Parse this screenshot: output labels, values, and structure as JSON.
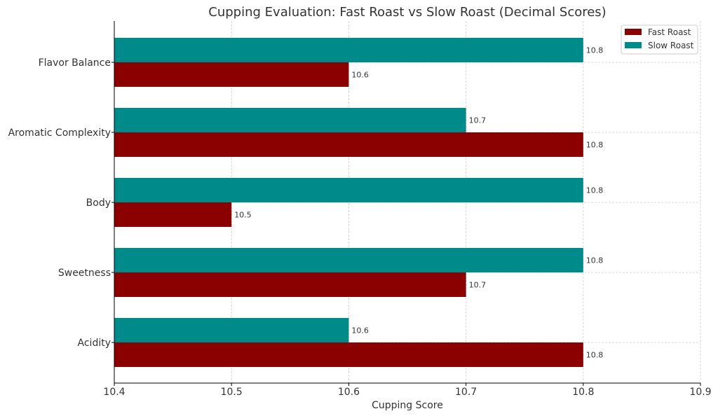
{
  "chart_data": {
    "type": "bar",
    "orientation": "horizontal",
    "title": "Cupping Evaluation: Fast Roast vs Slow Roast (Decimal Scores)",
    "xlabel": "Cupping Score",
    "ylabel": "",
    "xlim": [
      10.4,
      10.9
    ],
    "xticks": [
      "10.4",
      "10.5",
      "10.6",
      "10.7",
      "10.8",
      "10.9"
    ],
    "categories": [
      "Flavor Balance",
      "Aromatic Complexity",
      "Body",
      "Sweetness",
      "Acidity"
    ],
    "series": [
      {
        "name": "Fast Roast",
        "color": "#8B0000",
        "values": [
          10.6,
          10.8,
          10.5,
          10.7,
          10.8
        ]
      },
      {
        "name": "Slow Roast",
        "color": "#008B8B",
        "values": [
          10.8,
          10.7,
          10.8,
          10.8,
          10.6
        ]
      }
    ],
    "grid": true,
    "legend": "top-right"
  }
}
